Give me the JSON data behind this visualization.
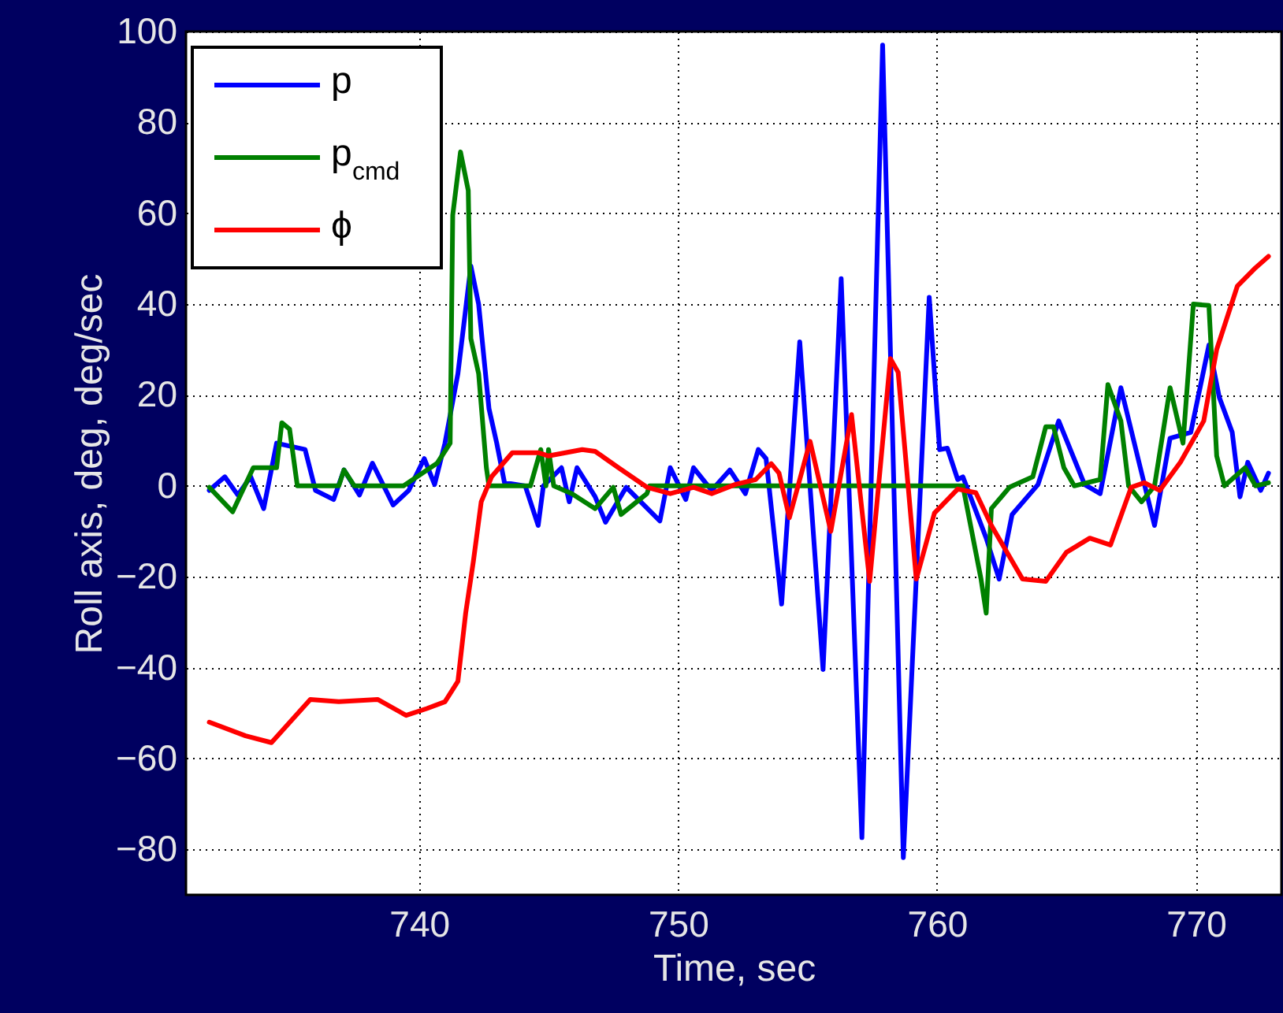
{
  "chart_data": {
    "type": "line",
    "xlabel": "Time, sec",
    "ylabel": "Roll axis, deg, deg/sec",
    "xlim": [
      731,
      773.3
    ],
    "ylim": [
      -90,
      100
    ],
    "xticks": [
      740,
      750,
      760,
      770
    ],
    "yticks": [
      -80,
      -60,
      -40,
      -20,
      0,
      20,
      40,
      60,
      80,
      100
    ],
    "grid": true,
    "legend": "top left",
    "line_style": "solid",
    "marker": "none",
    "series": [
      {
        "name": "p",
        "color": "#0000ff",
        "x": [
          731.9,
          732.5,
          733,
          733.5,
          734,
          734.5,
          735.6,
          736,
          736.7,
          737.1,
          737.7,
          738.2,
          739,
          739.6,
          740.2,
          740.6,
          741,
          741.5,
          742,
          742.3,
          742.7,
          743,
          743.3,
          744.1,
          744.6,
          744.8,
          745.5,
          745.8,
          746.1,
          746.8,
          747.2,
          748,
          749.3,
          749.7,
          750.3,
          750.6,
          751.3,
          752,
          752.6,
          753.1,
          753.4,
          754,
          754.7,
          755.6,
          756.3,
          757.1,
          757.9,
          758.7,
          759.7,
          760.1,
          760.4,
          760.8,
          761,
          761.9,
          762.4,
          762.9,
          763.9,
          764.7,
          765.7,
          766.3,
          767.1,
          767.8,
          768.4,
          769,
          769.8,
          770.5,
          770.9,
          771.4,
          771.7,
          772,
          772.5,
          772.8
        ],
        "values": [
          -1,
          2,
          -2,
          2,
          -5,
          9.4,
          8,
          -1,
          -3,
          3.5,
          -2,
          5,
          -4.2,
          -1,
          6,
          0.3,
          9.4,
          24.7,
          48.4,
          40,
          17,
          9.4,
          0.7,
          0,
          -8.7,
          0,
          4,
          -3.5,
          4,
          -2.4,
          -8,
          -0.3,
          -7.7,
          4,
          -3,
          4,
          -1,
          3.5,
          -1.7,
          8,
          6,
          -26,
          31.7,
          -40.4,
          45.6,
          -77.4,
          97,
          -81.8,
          41.5,
          8,
          8.3,
          1.4,
          2,
          -11.5,
          -20.5,
          -6.3,
          0.3,
          14.3,
          0.3,
          -1.7,
          21.6,
          5.2,
          -8.7,
          10.5,
          11.8,
          31,
          19.5,
          11.8,
          -2.4,
          5.2,
          -1,
          2.8
        ]
      },
      {
        "name": "p$_{cmd}$",
        "color": "#008000",
        "x": [
          731.9,
          732.8,
          733.6,
          734.5,
          734.7,
          735,
          735.3,
          736.9,
          737.1,
          737.5,
          739.4,
          740.7,
          741.2,
          741.3,
          741.6,
          741.9,
          742,
          742.3,
          742.6,
          742.7,
          744.3,
          744.7,
          744.9,
          745,
          745.2,
          745.9,
          746.8,
          747.5,
          747.8,
          748.8,
          748.9,
          761,
          761.7,
          761.9,
          762.1,
          762.8,
          763.7,
          764.2,
          764.5,
          764.9,
          765.3,
          766.3,
          766.6,
          767.1,
          767.4,
          767.9,
          768.4,
          769,
          769.5,
          769.9,
          770.5,
          770.8,
          771.1,
          771.9,
          772.3,
          772.8
        ],
        "values": [
          -0.3,
          -5.7,
          4,
          4,
          13.9,
          12.5,
          0,
          0,
          3.5,
          0,
          0,
          5,
          9.4,
          59.6,
          73.5,
          65,
          32.4,
          24.7,
          4,
          0,
          0,
          8,
          0,
          8,
          0,
          -1.7,
          -5,
          -0.3,
          -6.3,
          -1.7,
          0,
          0,
          -20.5,
          -28,
          -5,
          -0.3,
          2,
          13,
          13,
          4,
          0,
          1.4,
          22.3,
          14.3,
          0,
          -3.5,
          0,
          21.6,
          9.4,
          40,
          39.7,
          6.6,
          0,
          4,
          0,
          0.7
        ]
      },
      {
        "name": "ϕ",
        "color": "#ff0000",
        "x": [
          731.9,
          733.3,
          734.3,
          735.8,
          736.9,
          738.4,
          739.5,
          740.3,
          741,
          741.5,
          741.8,
          742.1,
          742.4,
          742.8,
          743.6,
          744.6,
          745,
          746.3,
          746.8,
          747.7,
          748.8,
          749.7,
          750.6,
          751.3,
          752.2,
          753,
          753.6,
          753.9,
          754.3,
          755.1,
          755.9,
          756.7,
          757.4,
          758.2,
          758.5,
          759.2,
          759.9,
          760.8,
          761.5,
          762.1,
          763.3,
          764.2,
          765,
          765.9,
          766.7,
          767.5,
          768,
          768.6,
          769.4,
          770.3,
          770.8,
          771.6,
          772.3,
          772.8
        ],
        "values": [
          -52,
          -55,
          -56.5,
          -47,
          -47.5,
          -47,
          -50.5,
          -49,
          -47.5,
          -43,
          -28,
          -16.5,
          -3.5,
          2,
          7.3,
          7.3,
          6.6,
          8,
          7.6,
          4,
          -0.3,
          -1.7,
          -0.3,
          -1.7,
          0.3,
          1.4,
          4.9,
          2.8,
          -7,
          9.8,
          -10,
          15.7,
          -21,
          28,
          25,
          -20.5,
          -6,
          -0.7,
          -1.5,
          -8.7,
          -20.5,
          -21,
          -14.6,
          -11.5,
          -13,
          -0.3,
          0.7,
          -1,
          5.2,
          14.3,
          30,
          44,
          48,
          50.5
        ]
      }
    ]
  }
}
